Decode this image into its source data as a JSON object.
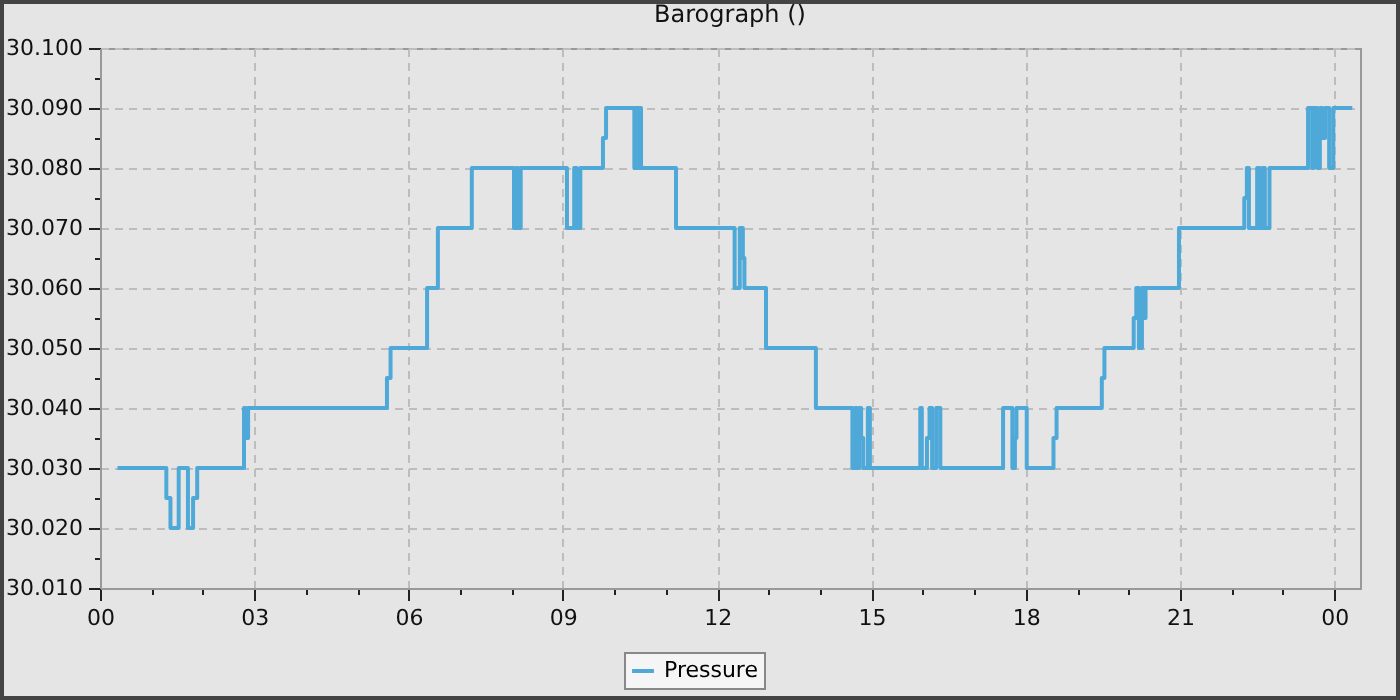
{
  "chart_data": {
    "type": "step",
    "title": "Barograph ()",
    "xlim": [
      0,
      24.5
    ],
    "ylim": [
      30.01,
      30.1
    ],
    "xticks": [
      {
        "value": 0,
        "label": "00"
      },
      {
        "value": 1,
        "label": null
      },
      {
        "value": 2,
        "label": null
      },
      {
        "value": 3,
        "label": "03"
      },
      {
        "value": 4,
        "label": null
      },
      {
        "value": 5,
        "label": null
      },
      {
        "value": 6,
        "label": "06"
      },
      {
        "value": 7,
        "label": null
      },
      {
        "value": 8,
        "label": null
      },
      {
        "value": 9,
        "label": "09"
      },
      {
        "value": 10,
        "label": null
      },
      {
        "value": 11,
        "label": null
      },
      {
        "value": 12,
        "label": "12"
      },
      {
        "value": 13,
        "label": null
      },
      {
        "value": 14,
        "label": null
      },
      {
        "value": 15,
        "label": "15"
      },
      {
        "value": 16,
        "label": null
      },
      {
        "value": 17,
        "label": null
      },
      {
        "value": 18,
        "label": "18"
      },
      {
        "value": 19,
        "label": null
      },
      {
        "value": 20,
        "label": null
      },
      {
        "value": 21,
        "label": "21"
      },
      {
        "value": 22,
        "label": null
      },
      {
        "value": 23,
        "label": null
      },
      {
        "value": 24,
        "label": "00"
      }
    ],
    "yticks": [
      {
        "value": 30.01,
        "label": "30.010"
      },
      {
        "value": 30.015,
        "label": null
      },
      {
        "value": 30.02,
        "label": "30.020"
      },
      {
        "value": 30.025,
        "label": null
      },
      {
        "value": 30.03,
        "label": "30.030"
      },
      {
        "value": 30.035,
        "label": null
      },
      {
        "value": 30.04,
        "label": "30.040"
      },
      {
        "value": 30.045,
        "label": null
      },
      {
        "value": 30.05,
        "label": "30.050"
      },
      {
        "value": 30.055,
        "label": null
      },
      {
        "value": 30.06,
        "label": "30.060"
      },
      {
        "value": 30.065,
        "label": null
      },
      {
        "value": 30.07,
        "label": "30.070"
      },
      {
        "value": 30.075,
        "label": null
      },
      {
        "value": 30.08,
        "label": "30.080"
      },
      {
        "value": 30.085,
        "label": null
      },
      {
        "value": 30.09,
        "label": "30.090"
      },
      {
        "value": 30.095,
        "label": null
      },
      {
        "value": 30.1,
        "label": "30.100"
      }
    ],
    "grid": true,
    "legend": "bottom",
    "line_style": "solid",
    "marker": "none",
    "series": [
      {
        "name": "Pressure",
        "color": "#4fa9d8",
        "x": [
          0.34,
          1.29,
          1.37,
          1.53,
          1.71,
          1.81,
          1.89,
          2.8,
          2.84,
          2.88,
          5.58,
          5.65,
          6.36,
          6.57,
          7.23,
          8.05,
          8.1,
          8.13,
          8.18,
          9.08,
          9.22,
          9.27,
          9.34,
          9.78,
          9.84,
          10.39,
          10.41,
          10.45,
          10.48,
          10.52,
          11.2,
          12.34,
          12.44,
          12.5,
          12.53,
          12.95,
          13.92,
          14.63,
          14.68,
          14.72,
          14.76,
          14.8,
          14.84,
          14.93,
          14.97,
          15.95,
          15.98,
          16.08,
          16.13,
          16.18,
          16.26,
          16.34,
          17.56,
          17.74,
          17.79,
          17.82,
          18.02,
          18.54,
          18.6,
          19.48,
          19.53,
          20.1,
          20.15,
          20.2,
          20.26,
          20.3,
          20.33,
          20.98,
          22.25,
          22.3,
          22.34,
          22.5,
          22.55,
          22.6,
          22.65,
          22.74,
          23.49,
          23.57,
          23.6,
          23.67,
          23.72,
          23.77,
          23.82,
          23.9,
          23.98,
          24.35
        ],
        "values": [
          30.03,
          30.025,
          30.02,
          30.03,
          30.02,
          30.025,
          30.03,
          30.04,
          30.035,
          30.04,
          30.045,
          30.05,
          30.06,
          30.07,
          30.08,
          30.07,
          30.08,
          30.07,
          30.08,
          30.07,
          30.08,
          30.07,
          30.08,
          30.085,
          30.09,
          30.08,
          30.09,
          30.08,
          30.09,
          30.08,
          30.07,
          30.06,
          30.07,
          30.065,
          30.06,
          30.05,
          30.04,
          30.03,
          30.04,
          30.03,
          30.04,
          30.035,
          30.03,
          30.04,
          30.03,
          30.04,
          30.03,
          30.035,
          30.04,
          30.03,
          30.04,
          30.03,
          30.04,
          30.03,
          30.035,
          30.04,
          30.03,
          30.035,
          30.04,
          30.045,
          30.05,
          30.055,
          30.06,
          30.05,
          30.06,
          30.055,
          30.06,
          30.07,
          30.075,
          30.08,
          30.07,
          30.08,
          30.07,
          30.08,
          30.07,
          30.08,
          30.09,
          30.08,
          30.09,
          30.08,
          30.09,
          30.085,
          30.09,
          30.08,
          30.09,
          30.09
        ]
      }
    ]
  }
}
